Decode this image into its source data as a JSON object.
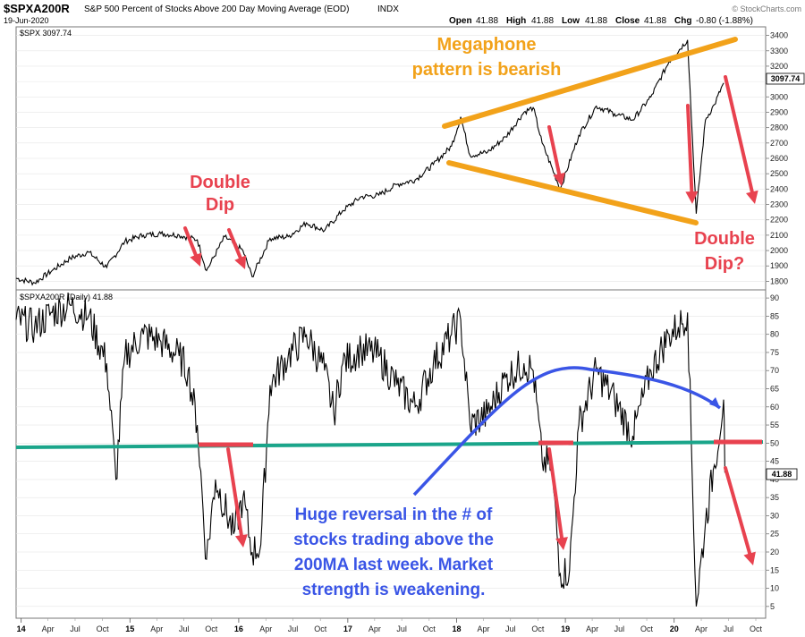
{
  "header": {
    "symbol": "$SPXA200R",
    "description": "S&P 500 Percent of Stocks Above 200 Day Moving Average (EOD)",
    "exchange": "INDX",
    "date": "19-Jun-2020",
    "open_label": "Open",
    "open": "41.88",
    "high_label": "High",
    "high": "41.88",
    "low_label": "Low",
    "low": "41.88",
    "close_label": "Close",
    "close": "41.88",
    "chg_label": "Chg",
    "chg": "-0.80 (-1.88%)",
    "brand": "© StockCharts.com"
  },
  "top_panel": {
    "legend": "$SPX 3097.74",
    "last_value_tag": "3097.74"
  },
  "bottom_panel": {
    "legend": "$SPXA200R (Daily) 41.88",
    "last_value_tag": "41.88"
  },
  "x_axis": {
    "year_labels": [
      "14",
      "15",
      "16",
      "17",
      "18",
      "19",
      "20"
    ],
    "month_labels": [
      "Apr",
      "Jul",
      "Oct",
      "Apr",
      "Jul",
      "Oct",
      "Apr",
      "Jul",
      "Oct",
      "Apr",
      "Jul",
      "Oct",
      "Apr",
      "Jul",
      "Oct",
      "Apr",
      "Jul",
      "Oct",
      "Apr",
      "Jul",
      "Oct"
    ]
  },
  "annotations": {
    "double_dip_1": "Double",
    "double_dip_2": "Dip",
    "megaphone_1": "Megaphone",
    "megaphone_2": "pattern is bearish",
    "double_dip_q_1": "Double",
    "double_dip_q_2": "Dip?",
    "reversal_1": "Huge reversal in the # of",
    "reversal_2": "stocks trading above the",
    "reversal_3": "200MA last week. Market",
    "reversal_4": "strength is weakening."
  },
  "colors": {
    "price_line": "#000000",
    "red_annotation": "#e8424f",
    "orange_annotation": "#f2a21a",
    "blue_annotation": "#3a55e6",
    "teal_line": "#1aa58a"
  },
  "chart_data": [
    {
      "type": "line",
      "title": "$SPX",
      "ylim": [
        1750,
        3450
      ],
      "yticks": [
        1800,
        1900,
        2000,
        2100,
        2200,
        2300,
        2400,
        2500,
        2600,
        2700,
        2800,
        2900,
        3000,
        3100,
        3200,
        3300,
        3400
      ],
      "x": [
        "2013-12",
        "2014-02",
        "2014-04",
        "2014-06",
        "2014-08",
        "2014-10",
        "2014-12",
        "2015-02",
        "2015-04",
        "2015-06",
        "2015-08",
        "2015-09",
        "2015-11",
        "2016-01",
        "2016-02",
        "2016-04",
        "2016-06",
        "2016-08",
        "2016-10",
        "2016-12",
        "2017-02",
        "2017-04",
        "2017-06",
        "2017-08",
        "2017-10",
        "2017-12",
        "2018-01",
        "2018-02",
        "2018-04",
        "2018-06",
        "2018-08",
        "2018-09",
        "2018-10",
        "2018-12",
        "2019-02",
        "2019-04",
        "2019-06",
        "2019-08",
        "2019-10",
        "2019-12",
        "2020-02",
        "2020-03",
        "2020-04",
        "2020-05",
        "2020-06"
      ],
      "values": [
        1820,
        1790,
        1870,
        1950,
        1990,
        1890,
        2060,
        2100,
        2110,
        2100,
        2070,
        1870,
        2090,
        2000,
        1830,
        2080,
        2090,
        2180,
        2130,
        2260,
        2350,
        2360,
        2430,
        2460,
        2560,
        2680,
        2870,
        2620,
        2640,
        2740,
        2900,
        2930,
        2700,
        2400,
        2750,
        2940,
        2890,
        2850,
        3000,
        3230,
        3370,
        2240,
        2850,
        2950,
        3090
      ]
    },
    {
      "type": "line",
      "title": "$SPXA200R (Daily)",
      "ylim": [
        2,
        92
      ],
      "yticks": [
        5,
        10,
        15,
        20,
        25,
        30,
        35,
        40,
        45,
        50,
        55,
        60,
        65,
        70,
        75,
        80,
        85,
        90
      ],
      "x": [
        "2013-12",
        "2014-02",
        "2014-04",
        "2014-06",
        "2014-08",
        "2014-10",
        "2014-11",
        "2014-12",
        "2015-02",
        "2015-04",
        "2015-06",
        "2015-07",
        "2015-08",
        "2015-09",
        "2015-10",
        "2015-12",
        "2016-01",
        "2016-02",
        "2016-03",
        "2016-04",
        "2016-06",
        "2016-08",
        "2016-10",
        "2016-11",
        "2016-12",
        "2017-02",
        "2017-04",
        "2017-06",
        "2017-08",
        "2017-10",
        "2017-12",
        "2018-01",
        "2018-02",
        "2018-04",
        "2018-06",
        "2018-08",
        "2018-09",
        "2018-10",
        "2018-11",
        "2018-12",
        "2019-01",
        "2019-02",
        "2019-04",
        "2019-06",
        "2019-08",
        "2019-10",
        "2019-12",
        "2020-01",
        "2020-02",
        "2020-03",
        "2020-04",
        "2020-05",
        "2020-06",
        "2020-06-19"
      ],
      "values": [
        84,
        82,
        86,
        88,
        85,
        72,
        40,
        74,
        80,
        78,
        74,
        70,
        55,
        18,
        40,
        25,
        35,
        20,
        22,
        66,
        74,
        80,
        70,
        58,
        72,
        76,
        74,
        66,
        60,
        72,
        80,
        84,
        55,
        58,
        68,
        72,
        70,
        45,
        44,
        14,
        15,
        55,
        70,
        62,
        52,
        70,
        80,
        82,
        86,
        5,
        28,
        44,
        62,
        41.88
      ]
    }
  ]
}
